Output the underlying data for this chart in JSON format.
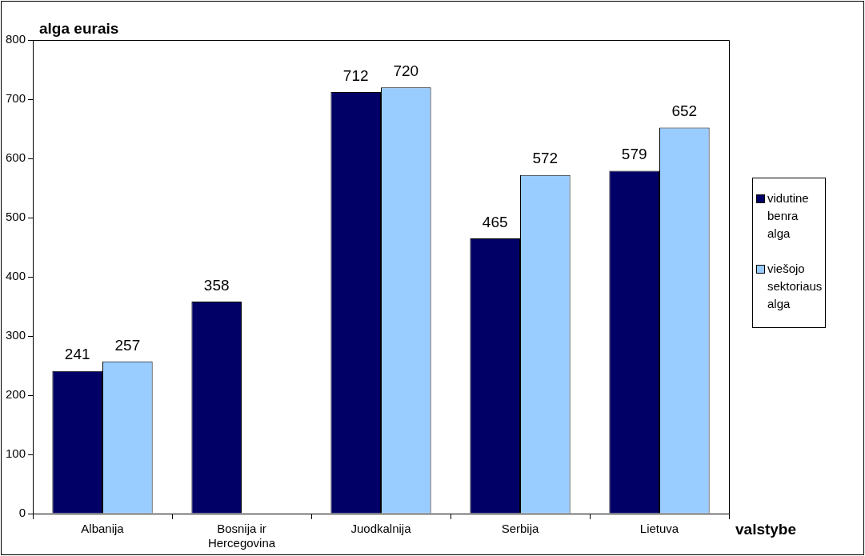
{
  "chart_data": {
    "type": "bar",
    "ylabel": "alga eurais",
    "xlabel": "valstybe",
    "categories": [
      "Albanija",
      "Bosnija ir Hercegovina",
      "Juodkalnija",
      "Serbija",
      "Lietuva"
    ],
    "series": [
      {
        "name": "vidutine benra alga",
        "color": "#000066",
        "values": [
          241,
          358,
          712,
          465,
          579
        ]
      },
      {
        "name": "viešojo sektoriaus alga",
        "color": "#99ccff",
        "values": [
          257,
          null,
          720,
          572,
          652
        ]
      }
    ],
    "ylim": [
      0,
      800
    ],
    "yticks": [
      0,
      100,
      200,
      300,
      400,
      500,
      600,
      700,
      800
    ],
    "data_labels": true,
    "legend": "right"
  }
}
